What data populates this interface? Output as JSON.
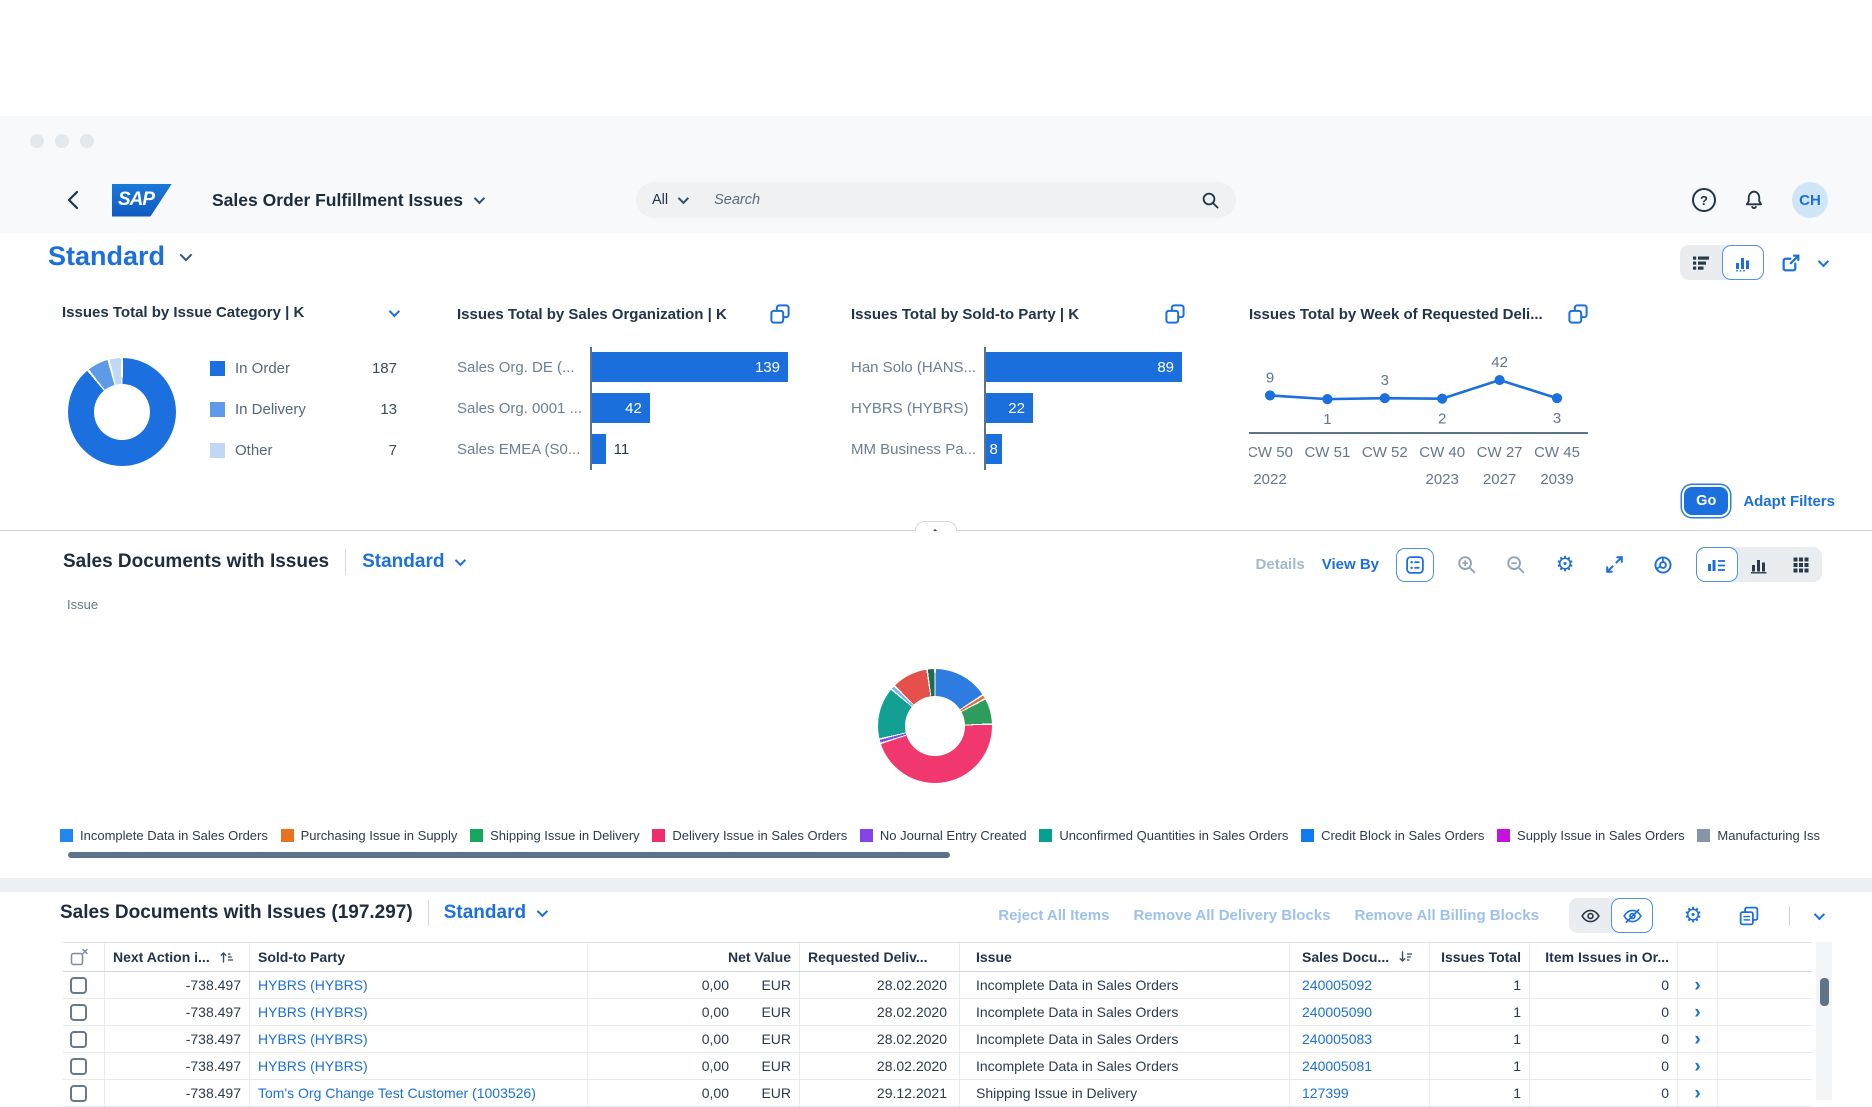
{
  "shell": {
    "logo_text": "SAP",
    "app_title": "Sales Order Fulfillment Issues",
    "search_scope": "All",
    "search_placeholder": "Search",
    "help_glyph": "?",
    "avatar_initials": "CH"
  },
  "filterbar": {
    "variant": "Standard",
    "go_label": "Go",
    "adapt_filters_label": "Adapt Filters"
  },
  "cards": {
    "category": {
      "title": "Issues Total by Issue Category  | K",
      "legend": [
        {
          "label": "In Order",
          "value": "187",
          "color": "#1b6fde"
        },
        {
          "label": "In Delivery",
          "value": "13",
          "color": "#5d9be8"
        },
        {
          "label": "Other",
          "value": "7",
          "color": "#c0d8f4"
        }
      ]
    },
    "sales_org": {
      "title": "Issues Total by Sales Organization  | K",
      "bars": [
        {
          "label": "Sales Org. DE (...",
          "value": 139,
          "display": "139",
          "inside": true
        },
        {
          "label": "Sales Org. 0001 ...",
          "value": 42,
          "display": "42",
          "inside": true
        },
        {
          "label": "Sales EMEA (S0...",
          "value": 11,
          "display": "11",
          "inside": false
        }
      ]
    },
    "sold_to": {
      "title": "Issues Total by Sold-to Party  | K",
      "bars": [
        {
          "label": "Han Solo (HANS...",
          "value": 89,
          "display": "89",
          "inside": true
        },
        {
          "label": "HYBRS (HYBRS)",
          "value": 22,
          "display": "22",
          "inside": true
        },
        {
          "label": "MM Business Pa...",
          "value": 8,
          "display": "8",
          "inside": true
        }
      ]
    },
    "week": {
      "title": "Issues Total by Week of Requested Deli...",
      "points": [
        {
          "x": "CW 50",
          "x2": "2022",
          "value": 9
        },
        {
          "x": "CW 51",
          "x2": "",
          "value": 1
        },
        {
          "x": "CW 52",
          "x2": "",
          "value": 3
        },
        {
          "x": "CW 40",
          "x2": "2023",
          "value": 2
        },
        {
          "x": "CW 27",
          "x2": "2027",
          "value": 42
        },
        {
          "x": "CW 45",
          "x2": "2039",
          "value": 3
        }
      ]
    }
  },
  "chart_section": {
    "title": "Sales Documents with Issues",
    "variant": "Standard",
    "details_label": "Details",
    "view_by_label": "View By",
    "dimension_label": "Issue",
    "donut": [
      {
        "label": "Incomplete Data in Sales Orders",
        "pct": 15.5,
        "color": "#2387f0",
        "wedge": "#2e7ce0"
      },
      {
        "label": "Purchasing Issue in Supply",
        "pct": 0.8,
        "color": "#e8731e",
        "wedge": "#e8703a"
      },
      {
        "label": "Shipping Issue in Delivery",
        "pct": 7.0,
        "color": "#16a75c",
        "wedge": "#2e9c5c"
      },
      {
        "label": "Delivery Issue in Sales Orders",
        "pct": 45.5,
        "color": "#ee2e6c",
        "wedge": "#f0386e"
      },
      {
        "label": "No Journal Entry Created",
        "pct": 0.8,
        "color": "#8444e8",
        "wedge": "#7a52d6"
      },
      {
        "label": "Unconfirmed Quantities in Sales Orders",
        "pct": 14.5,
        "color": "#06a093",
        "wedge": "#12a093"
      },
      {
        "label": "Credit Block in Sales Orders",
        "pct": 0.8,
        "color": "#0f7bf0",
        "wedge": "#79b6ee"
      },
      {
        "label": "Supply Issue in Sales Orders",
        "pct": 10.0,
        "color": "#c413dd",
        "wedge": "#e6504a"
      },
      {
        "label": "Manufacturing Iss",
        "pct": 1.8,
        "color": "#8696a9",
        "wedge": "#1e6b52"
      }
    ]
  },
  "table": {
    "title": "Sales Documents with Issues (197.297)",
    "variant": "Standard",
    "actions": [
      {
        "label": "Reject All Items"
      },
      {
        "label": "Remove All Delivery Blocks"
      },
      {
        "label": "Remove All Billing Blocks"
      }
    ],
    "columns": [
      {
        "key": "next_action",
        "label": "Next Action i...",
        "sort": "asc"
      },
      {
        "key": "sold_to",
        "label": "Sold-to Party"
      },
      {
        "key": "net_value",
        "label": "Net Value"
      },
      {
        "key": "requested",
        "label": "Requested Deliv..."
      },
      {
        "key": "issue",
        "label": "Issue"
      },
      {
        "key": "sales_doc",
        "label": "Sales Docu...",
        "sort": "desc"
      },
      {
        "key": "issues_total",
        "label": "Issues Total"
      },
      {
        "key": "item_issues",
        "label": "Item Issues in Or..."
      }
    ],
    "rows": [
      {
        "next_action": "-738.497",
        "sold_to": "HYBRS (HYBRS)",
        "net_value": "0,00",
        "currency": "EUR",
        "requested": "28.02.2020",
        "issue": "Incomplete Data in Sales Orders",
        "sales_doc": "240005092",
        "issues_total": "1",
        "item_issues": "0"
      },
      {
        "next_action": "-738.497",
        "sold_to": "HYBRS (HYBRS)",
        "net_value": "0,00",
        "currency": "EUR",
        "requested": "28.02.2020",
        "issue": "Incomplete Data in Sales Orders",
        "sales_doc": "240005090",
        "issues_total": "1",
        "item_issues": "0"
      },
      {
        "next_action": "-738.497",
        "sold_to": "HYBRS (HYBRS)",
        "net_value": "0,00",
        "currency": "EUR",
        "requested": "28.02.2020",
        "issue": "Incomplete Data in Sales Orders",
        "sales_doc": "240005083",
        "issues_total": "1",
        "item_issues": "0"
      },
      {
        "next_action": "-738.497",
        "sold_to": "HYBRS (HYBRS)",
        "net_value": "0,00",
        "currency": "EUR",
        "requested": "28.02.2020",
        "issue": "Incomplete Data in Sales Orders",
        "sales_doc": "240005081",
        "issues_total": "1",
        "item_issues": "0"
      },
      {
        "next_action": "-738.497",
        "sold_to": "Tom's Org Change Test Customer (1003526)",
        "net_value": "0,00",
        "currency": "EUR",
        "requested": "29.12.2021",
        "issue": "Shipping Issue in Delivery",
        "sales_doc": "127399",
        "issues_total": "1",
        "item_issues": "0"
      }
    ]
  },
  "chart_data": [
    {
      "type": "pie",
      "title": "Issues Total by Issue Category | K",
      "labels": [
        "In Order",
        "In Delivery",
        "Other"
      ],
      "values": [
        187,
        13,
        7
      ]
    },
    {
      "type": "bar",
      "orientation": "horizontal",
      "title": "Issues Total by Sales Organization | K",
      "categories": [
        "Sales Org. DE (...",
        "Sales Org. 0001 ...",
        "Sales EMEA (S0..."
      ],
      "values": [
        139,
        42,
        11
      ]
    },
    {
      "type": "bar",
      "orientation": "horizontal",
      "title": "Issues Total by Sold-to Party | K",
      "categories": [
        "Han Solo (HANS...",
        "HYBRS (HYBRS)",
        "MM Business Pa..."
      ],
      "values": [
        89,
        22,
        8
      ]
    },
    {
      "type": "line",
      "title": "Issues Total by Week of Requested Deli...",
      "x": [
        "CW 50 2022",
        "CW 51",
        "CW 52",
        "CW 40 2023",
        "CW 27 2027",
        "CW 45 2039"
      ],
      "values": [
        9,
        1,
        3,
        2,
        42,
        3
      ]
    },
    {
      "type": "pie",
      "title": "Sales Documents with Issues by Issue",
      "labels": [
        "Incomplete Data in Sales Orders",
        "Purchasing Issue in Supply",
        "Shipping Issue in Delivery",
        "Delivery Issue in Sales Orders",
        "No Journal Entry Created",
        "Unconfirmed Quantities in Sales Orders",
        "Credit Block in Sales Orders",
        "Supply Issue in Sales Orders",
        "Manufacturing Iss"
      ],
      "values_pct_approx": [
        15.5,
        0.8,
        7,
        45.5,
        0.8,
        14.5,
        0.8,
        10,
        1.8
      ]
    }
  ]
}
